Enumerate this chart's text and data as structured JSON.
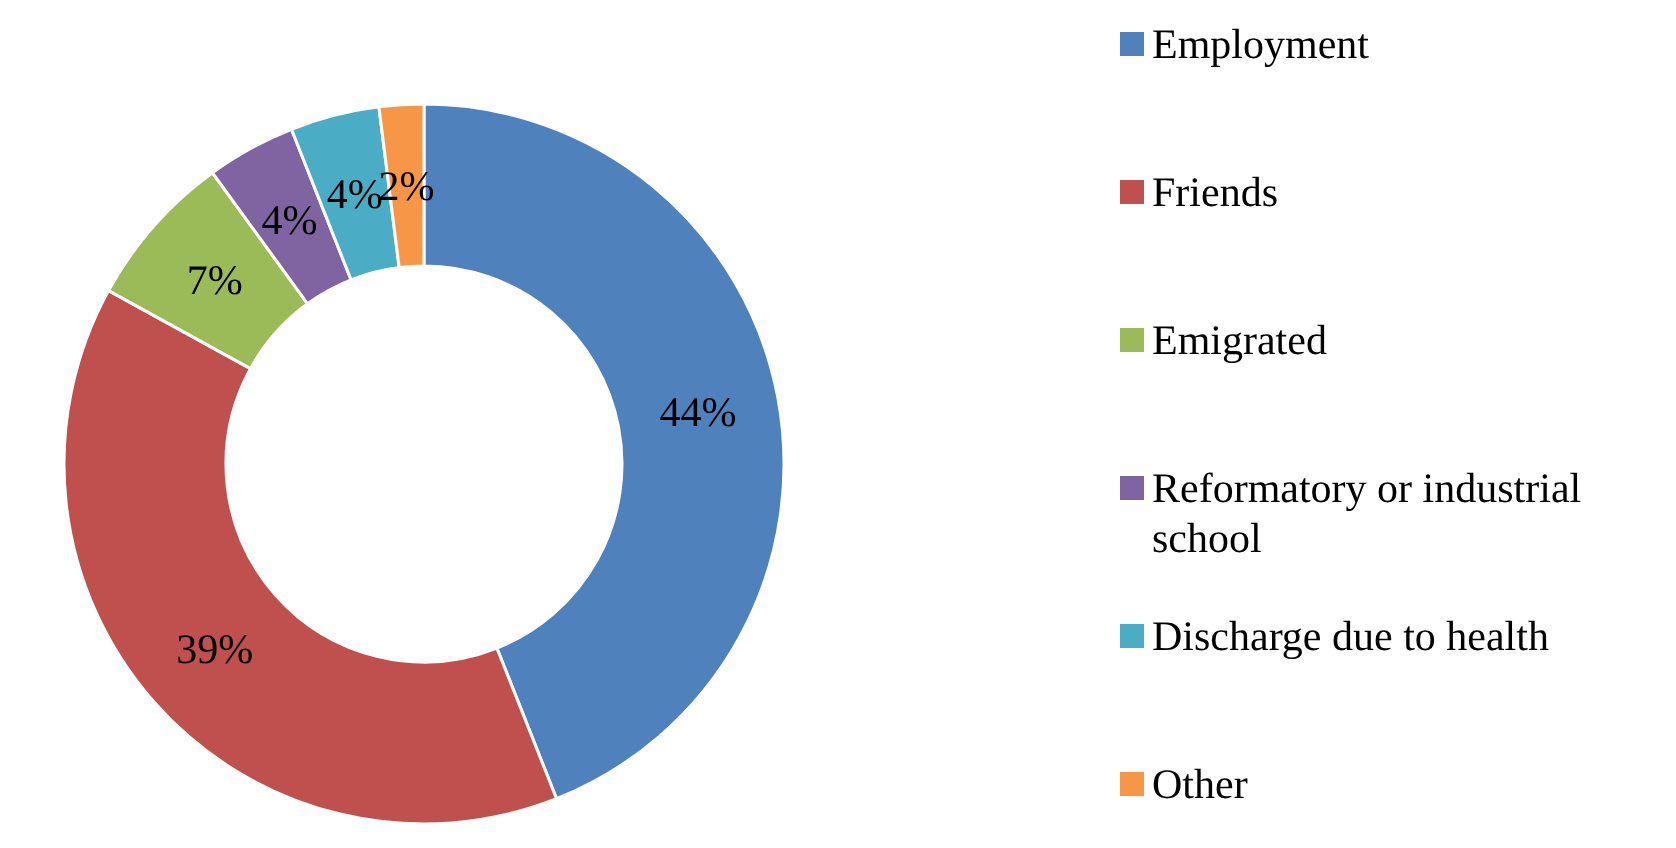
{
  "chart_data": {
    "type": "donut",
    "categories": [
      "Employment",
      "Friends",
      "Emigrated",
      "Reformatory or industrial school",
      "Discharge due to health",
      "Other"
    ],
    "values": [
      44,
      39,
      7,
      4,
      4,
      2
    ],
    "value_labels": [
      "44%",
      "39%",
      "7%",
      "4%",
      "4%",
      "2%"
    ],
    "colors": [
      "#4f81bd",
      "#c0504d",
      "#9bbb59",
      "#8064a2",
      "#4bacc6",
      "#f79646"
    ],
    "legend": "right"
  }
}
